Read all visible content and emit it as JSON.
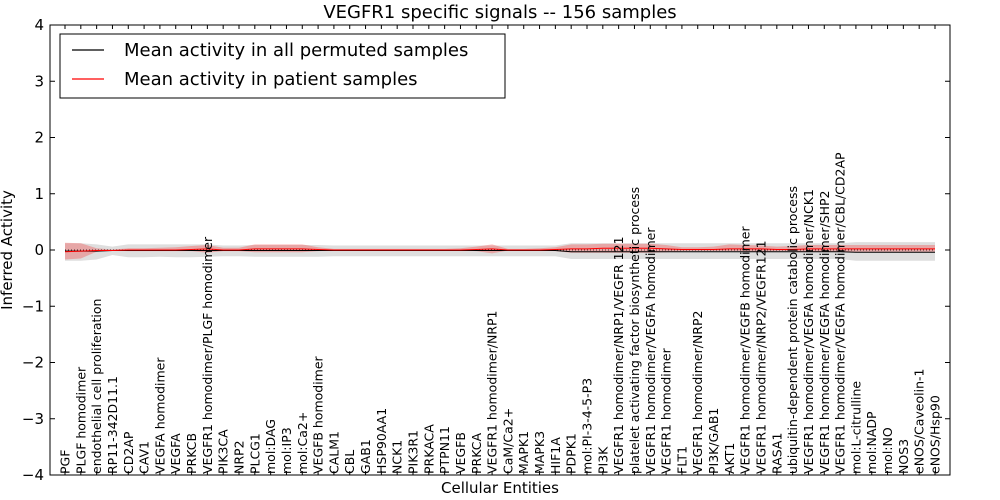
{
  "chart_data": {
    "type": "line",
    "title": "VEGFR1 specific signals -- 156 samples",
    "xlabel": "Cellular Entities",
    "ylabel": "Inferred Activity",
    "ylim": [
      -4,
      4
    ],
    "yticks": [
      -4,
      -3,
      -2,
      -1,
      0,
      1,
      2,
      3,
      4
    ],
    "ytick_labels": [
      "−4",
      "−3",
      "−2",
      "−1",
      "0",
      "1",
      "2",
      "3",
      "4"
    ],
    "legend_position": "top-left",
    "categories": [
      "PGF",
      "PLGF homodimer",
      "endothelial cell proliferation",
      "RP11-342D11.1",
      "CD2AP",
      "CAV1",
      "VEGFA homodimer",
      "VEGFA",
      "PRKCB",
      "VEGFR1 homodimer/PLGF homodimer",
      "PIK3CA",
      "NRP2",
      "PLCG1",
      "mol:DAG",
      "mol:IP3",
      "mol:Ca2+",
      "VEGFB homodimer",
      "CALM1",
      "CBL",
      "GAB1",
      "HSP90AA1",
      "NCK1",
      "PIK3R1",
      "PRKACA",
      "PTPN11",
      "VEGFB",
      "PRKCA",
      "VEGFR1 homodimer/NRP1",
      "CaM/Ca2+",
      "MAPK1",
      "MAPK3",
      "HIF1A",
      "PDPK1",
      "mol:PI-3-4-5-P3",
      "PI3K",
      "VEGFR1 homodimer/NRP1/VEGFR 121",
      "platelet activating factor biosynthetic process",
      "VEGFR1 homodimer/VEGFA homodimer",
      "VEGFR1 homodimer",
      "FLT1",
      "VEGFR1 homodimer/NRP2",
      "PI3K/GAB1",
      "AKT1",
      "VEGFR1 homodimer/VEGFB homodimer",
      "VEGFR1 homodimer/NRP2/VEGFR121",
      "RASA1",
      "ubiquitin-dependent protein catabolic process",
      "VEGFR1 homodimer/VEGFA homodimer/NCK1",
      "VEGFR1 homodimer/VEGFA homodimer/SHP2",
      "VEGFR1 homodimer/VEGFA homodimer/CBL/CD2AP",
      "mol:L-citrulline",
      "mol:NADP",
      "mol:NO",
      "NOS3",
      "eNOS/Caveolin-1",
      "eNOS/Hsp90"
    ],
    "series": [
      {
        "name": "Mean activity in all permuted samples",
        "color": "#000000",
        "values": [
          -0.02,
          -0.02,
          -0.02,
          -0.01,
          -0.01,
          -0.01,
          -0.01,
          -0.01,
          -0.01,
          -0.01,
          -0.01,
          -0.01,
          -0.01,
          -0.01,
          -0.01,
          -0.01,
          -0.01,
          -0.01,
          -0.01,
          -0.01,
          -0.01,
          -0.01,
          -0.01,
          -0.01,
          -0.01,
          -0.01,
          -0.01,
          -0.01,
          -0.01,
          -0.01,
          -0.01,
          -0.01,
          -0.03,
          -0.03,
          -0.03,
          -0.03,
          -0.03,
          -0.03,
          -0.03,
          -0.03,
          -0.03,
          -0.03,
          -0.03,
          -0.03,
          -0.03,
          -0.03,
          -0.03,
          -0.03,
          -0.03,
          -0.03,
          -0.04,
          -0.04,
          -0.04,
          -0.04,
          -0.04,
          -0.04
        ],
        "band_low": [
          -0.19,
          -0.19,
          -0.17,
          -0.09,
          -0.13,
          -0.13,
          -0.12,
          -0.13,
          -0.13,
          -0.12,
          -0.11,
          -0.11,
          -0.12,
          -0.12,
          -0.12,
          -0.12,
          -0.12,
          -0.11,
          -0.11,
          -0.11,
          -0.11,
          -0.11,
          -0.11,
          -0.11,
          -0.11,
          -0.11,
          -0.11,
          -0.11,
          -0.11,
          -0.11,
          -0.11,
          -0.11,
          -0.16,
          -0.16,
          -0.16,
          -0.16,
          -0.16,
          -0.16,
          -0.16,
          -0.16,
          -0.16,
          -0.16,
          -0.16,
          -0.16,
          -0.16,
          -0.16,
          -0.16,
          -0.16,
          -0.16,
          -0.16,
          -0.19,
          -0.19,
          -0.19,
          -0.19,
          -0.19,
          -0.19
        ],
        "band_high": [
          0.12,
          0.12,
          0.1,
          0.06,
          0.1,
          0.1,
          0.1,
          0.1,
          0.1,
          0.1,
          0.08,
          0.08,
          0.09,
          0.09,
          0.09,
          0.09,
          0.09,
          0.08,
          0.08,
          0.08,
          0.08,
          0.08,
          0.08,
          0.08,
          0.08,
          0.08,
          0.08,
          0.08,
          0.08,
          0.08,
          0.08,
          0.08,
          0.12,
          0.12,
          0.12,
          0.12,
          0.12,
          0.12,
          0.12,
          0.12,
          0.12,
          0.12,
          0.12,
          0.12,
          0.12,
          0.12,
          0.12,
          0.12,
          0.12,
          0.12,
          0.14,
          0.14,
          0.14,
          0.14,
          0.14,
          0.14
        ]
      },
      {
        "name": "Mean activity in patient samples",
        "color": "#ff0000",
        "values": [
          -0.03,
          -0.02,
          -0.01,
          -0.01,
          0.0,
          0.0,
          0.0,
          0.0,
          0.01,
          0.02,
          0.0,
          0.0,
          0.02,
          0.02,
          0.02,
          0.02,
          0.01,
          0.0,
          0.0,
          0.0,
          0.0,
          0.0,
          0.0,
          0.0,
          0.0,
          0.0,
          0.01,
          0.02,
          0.0,
          0.0,
          0.0,
          0.01,
          0.02,
          0.02,
          0.03,
          0.03,
          0.03,
          0.03,
          0.02,
          0.01,
          0.01,
          0.01,
          0.02,
          0.02,
          0.02,
          0.01,
          0.01,
          0.02,
          0.02,
          0.02,
          0.02,
          0.02,
          0.02,
          0.02,
          0.02,
          0.02
        ],
        "band_low": [
          -0.17,
          -0.15,
          -0.03,
          -0.01,
          -0.02,
          -0.02,
          -0.02,
          -0.02,
          -0.02,
          -0.05,
          -0.02,
          -0.02,
          -0.04,
          -0.04,
          -0.04,
          -0.04,
          -0.02,
          -0.01,
          -0.01,
          -0.01,
          -0.01,
          -0.01,
          -0.01,
          -0.01,
          -0.01,
          -0.01,
          -0.02,
          -0.06,
          -0.01,
          -0.01,
          -0.01,
          -0.02,
          -0.05,
          -0.05,
          -0.05,
          -0.05,
          -0.05,
          -0.05,
          -0.04,
          -0.02,
          -0.02,
          -0.02,
          -0.02,
          -0.02,
          -0.03,
          -0.02,
          -0.02,
          -0.03,
          -0.03,
          -0.03,
          -0.03,
          -0.03,
          -0.03,
          -0.03,
          -0.03,
          -0.03
        ],
        "band_high": [
          0.13,
          0.12,
          0.03,
          0.01,
          0.03,
          0.03,
          0.04,
          0.05,
          0.07,
          0.09,
          0.04,
          0.04,
          0.1,
          0.1,
          0.1,
          0.1,
          0.05,
          0.02,
          0.02,
          0.02,
          0.02,
          0.02,
          0.02,
          0.02,
          0.02,
          0.03,
          0.06,
          0.1,
          0.02,
          0.02,
          0.03,
          0.05,
          0.1,
          0.1,
          0.11,
          0.11,
          0.11,
          0.11,
          0.09,
          0.05,
          0.05,
          0.06,
          0.1,
          0.09,
          0.08,
          0.06,
          0.07,
          0.09,
          0.09,
          0.09,
          0.09,
          0.09,
          0.09,
          0.09,
          0.09,
          0.09
        ]
      }
    ],
    "reference_line": {
      "y": 0,
      "style": "dotted"
    }
  }
}
